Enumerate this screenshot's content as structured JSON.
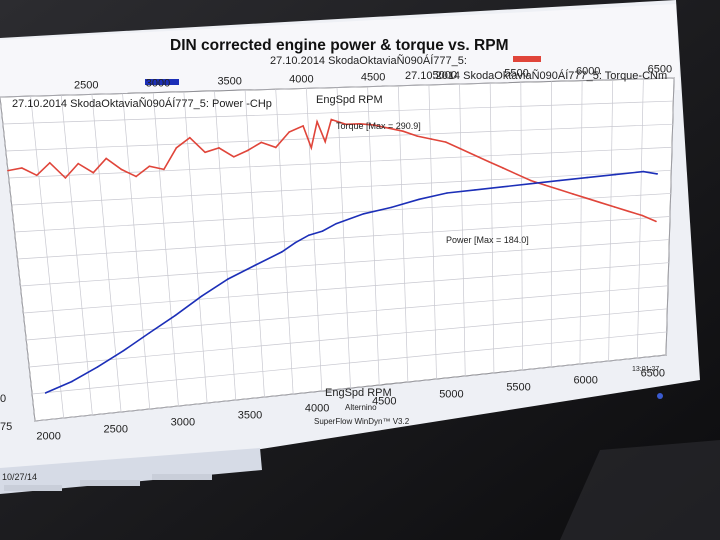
{
  "window": {
    "title": "DIN corrected engine power & torque vs. RPM",
    "run_date_top": "27.10.2014 SkodaOktaviaÑ090ÁÍ777_5:",
    "legend_torque": "27.10.2014 SkodaOktaviaÑ090ÁÍ777_5: Torque-CNm",
    "legend_power": "27.10.2014 SkodaOktaviaÑ090ÁÍ777_5: Power -CHp",
    "top_axis_label": "EngSpd RPM",
    "bottom_axis_label": "EngSpd RPM",
    "footer_line1": "Alternino",
    "footer_line2": "SuperFlow WinDyn™ V3.2",
    "clock": "13:01:27",
    "taskbar_date": "10/27/14",
    "left_edge_labels": [
      "0",
      "75"
    ]
  },
  "colors": {
    "torque": "#e0453a",
    "power": "#1c2fb8",
    "grid": "#c8c8d0",
    "plot_bg": "#ffffff"
  },
  "chart_data": {
    "type": "line",
    "title": "DIN corrected engine power & torque vs. RPM",
    "xlabel": "EngSpd RPM",
    "xlim": [
      1900,
      6600
    ],
    "top_ticks": [
      "2500",
      "3000",
      "3500",
      "4000",
      "4500",
      "5000",
      "5500",
      "6000",
      "6500"
    ],
    "bottom_ticks": [
      "2000",
      "2500",
      "3000",
      "3500",
      "4000",
      "4500",
      "5000",
      "5500",
      "6000",
      "6500"
    ],
    "series": [
      {
        "name": "Torque-CNm",
        "label": "Torque [Max = 290.9]",
        "x": [
          1900,
          2000,
          2100,
          2200,
          2300,
          2400,
          2500,
          2600,
          2700,
          2800,
          2900,
          3000,
          3100,
          3200,
          3300,
          3400,
          3500,
          3600,
          3700,
          3800,
          3900,
          4000,
          4050,
          4100,
          4150,
          4200,
          4300,
          4400,
          4500,
          4600,
          4700,
          4800,
          4900,
          5000,
          5100,
          5200,
          5300,
          5400,
          5500,
          5600,
          5700,
          5800,
          5900,
          6000,
          6100,
          6200,
          6300,
          6400,
          6500
        ],
        "values": [
          271,
          272,
          268,
          274,
          266,
          273,
          268,
          275,
          269,
          265,
          270,
          268,
          279,
          284,
          276,
          278,
          273,
          276,
          280,
          277,
          285,
          288,
          276,
          290,
          279,
          290.9,
          288,
          288,
          287,
          285,
          283,
          280,
          278,
          276,
          272,
          268,
          264,
          260,
          256,
          252,
          249,
          246,
          243,
          240,
          237,
          234,
          231,
          228,
          224
        ]
      },
      {
        "name": "Power -CHp",
        "label": "Power [Max = 184.0]",
        "x": [
          2000,
          2200,
          2400,
          2600,
          2800,
          3000,
          3200,
          3400,
          3600,
          3800,
          3900,
          4000,
          4100,
          4200,
          4400,
          4600,
          4800,
          5000,
          5200,
          5400,
          5600,
          5800,
          6000,
          6200,
          6400,
          6500
        ],
        "values": [
          76,
          81,
          88,
          96,
          105,
          114,
          124,
          133,
          140,
          147,
          152,
          156,
          158,
          162,
          167,
          170,
          174,
          177,
          178,
          179,
          180,
          181,
          182,
          183,
          184,
          182
        ]
      }
    ],
    "grid": true
  }
}
